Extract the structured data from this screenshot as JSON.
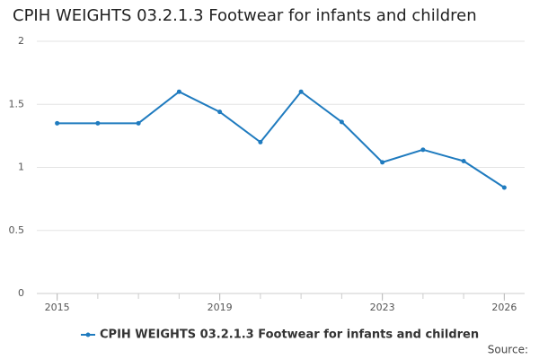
{
  "chart_data": {
    "type": "line",
    "title": "CPIH WEIGHTS 03.2.1.3 Footwear for infants and children",
    "x": [
      2015,
      2016,
      2017,
      2018,
      2019,
      2020,
      2021,
      2022,
      2023,
      2024,
      2025,
      2026
    ],
    "series": [
      {
        "name": "CPIH WEIGHTS 03.2.1.3 Footwear for infants and children",
        "color": "#1f7bbf",
        "values": [
          1.35,
          1.35,
          1.35,
          1.6,
          1.44,
          1.2,
          1.6,
          1.36,
          1.04,
          1.14,
          1.05,
          0.84
        ]
      }
    ],
    "xlim": [
      2014.5,
      2026.5
    ],
    "xticks": [
      2015,
      2019,
      2023,
      2026
    ],
    "ylim": [
      0,
      2
    ],
    "yticks": [
      0,
      0.5,
      1,
      1.5,
      2
    ],
    "grid": true,
    "source": "Source:"
  }
}
